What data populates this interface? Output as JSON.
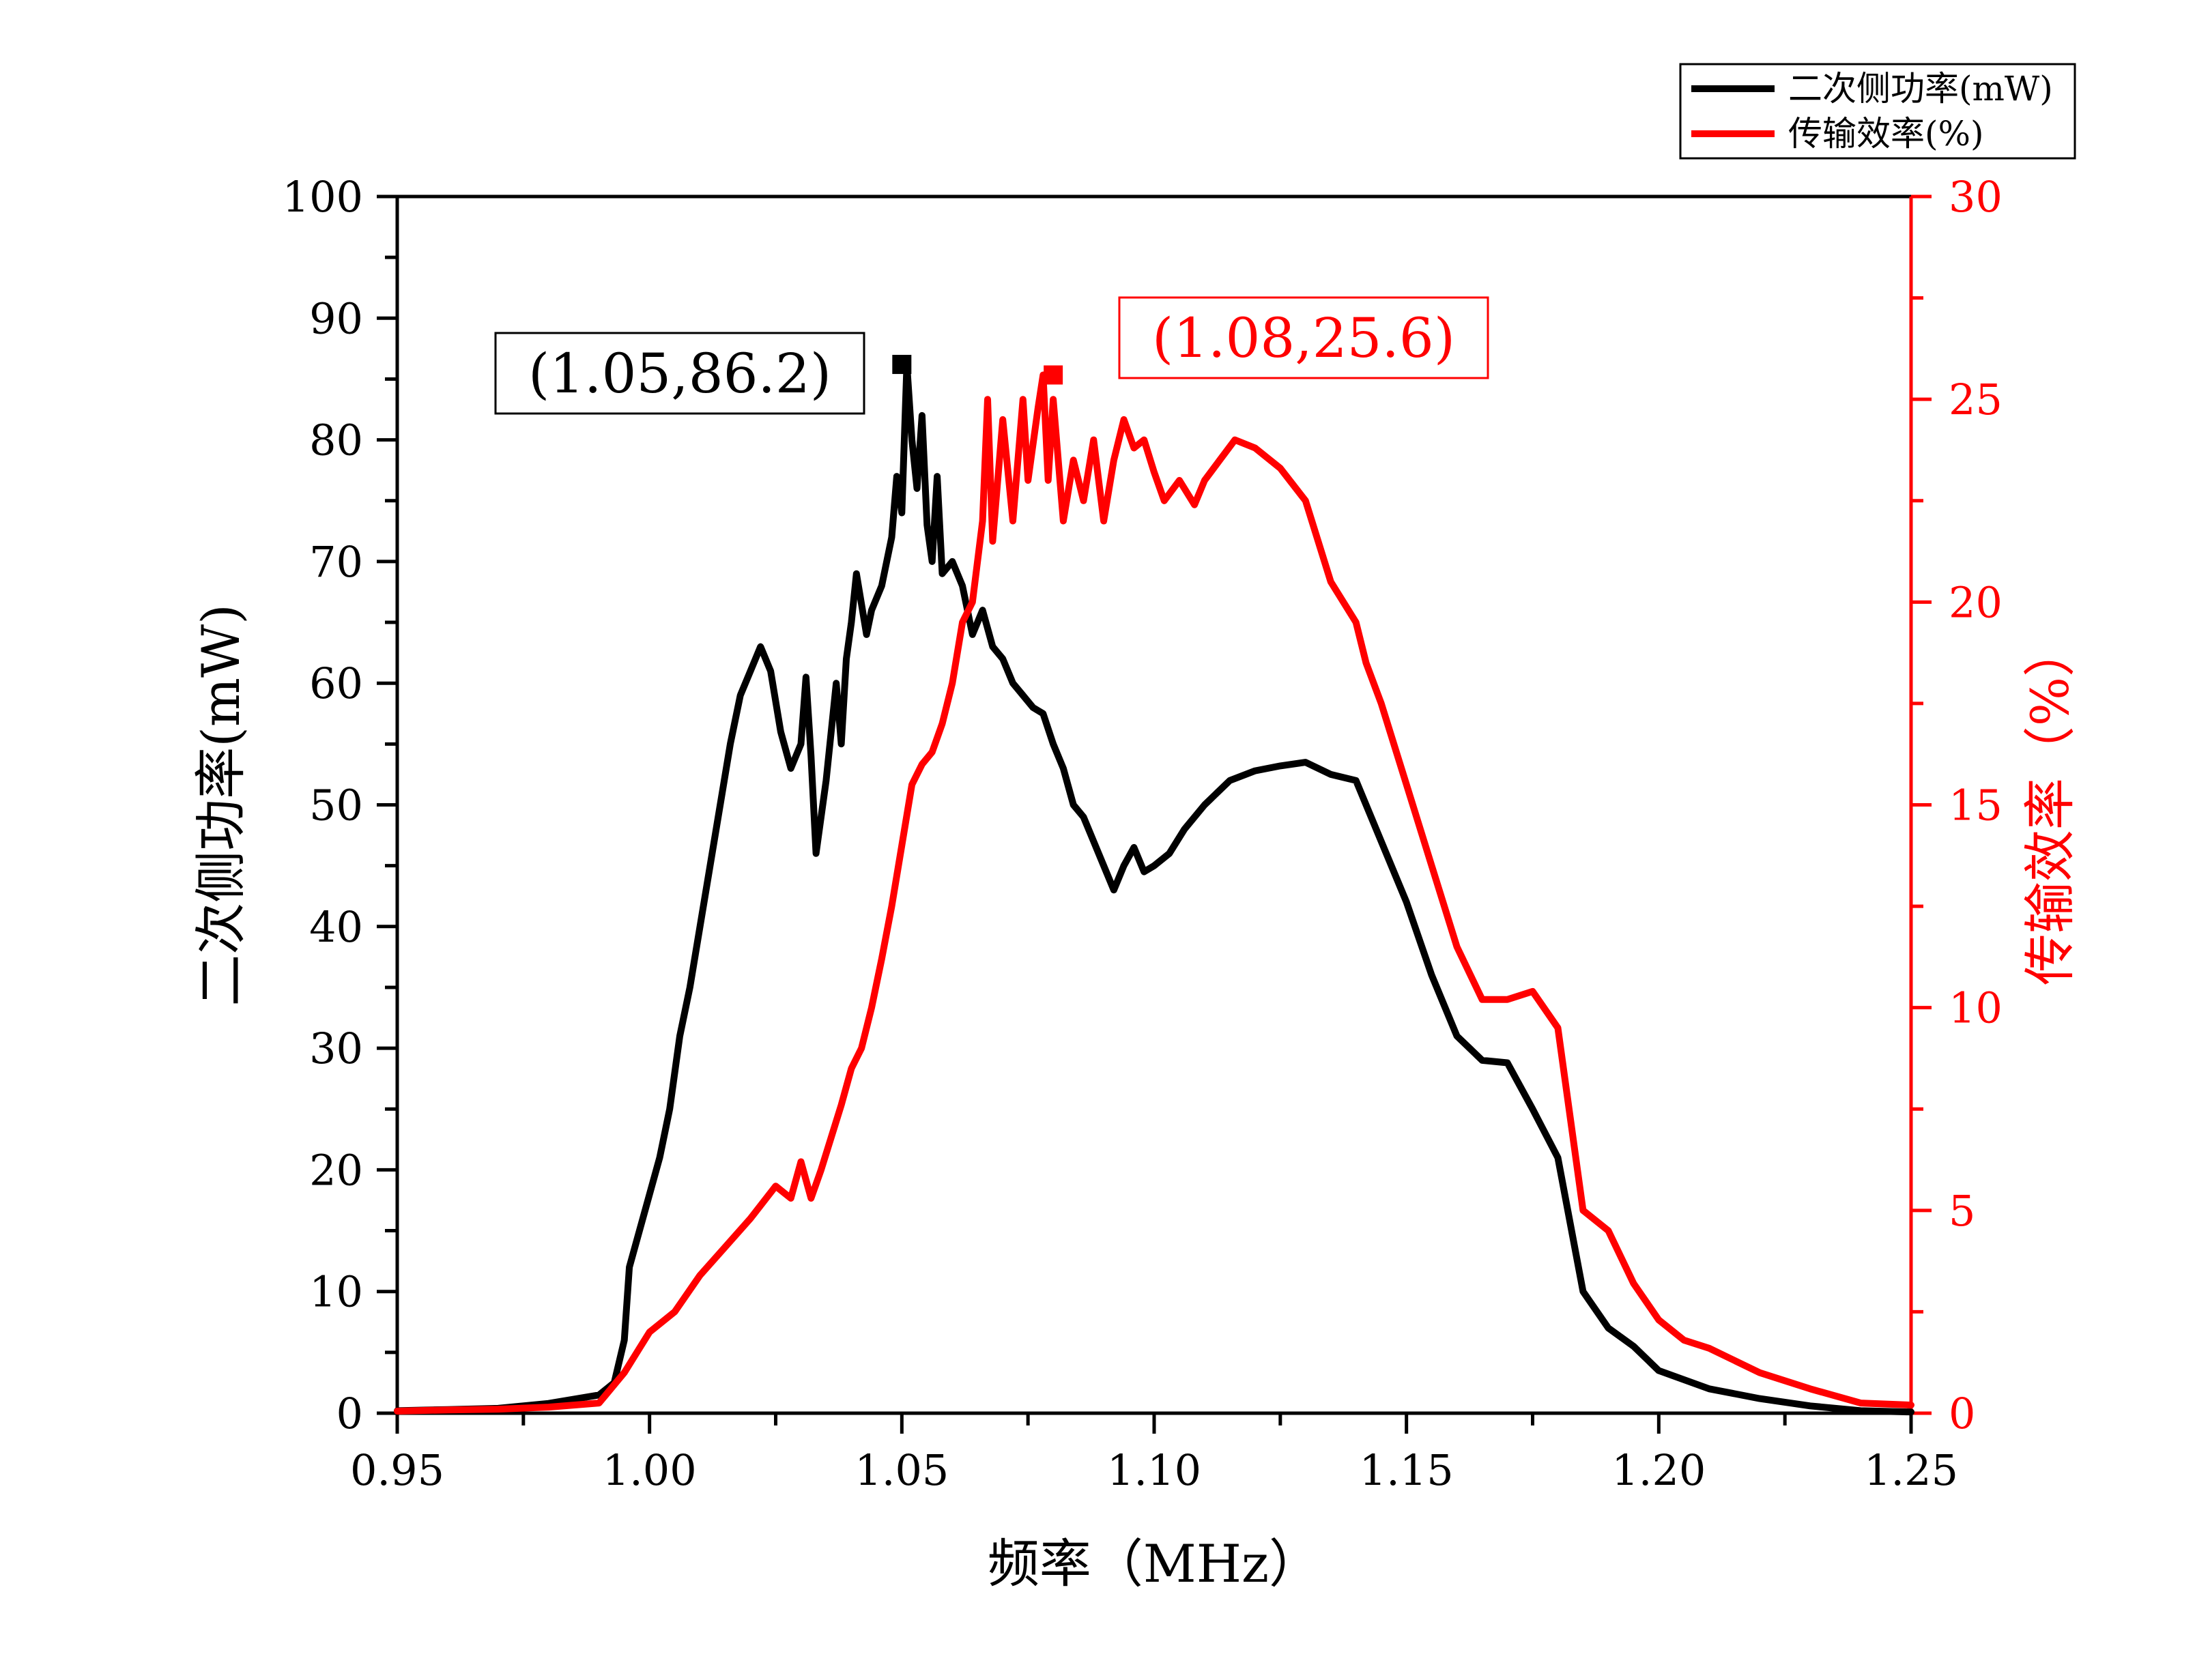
{
  "chart_data": {
    "type": "line",
    "title": "",
    "xlabel": "频率（MHz）",
    "ylabel_left": "二次侧功率(mW)",
    "ylabel_right": "传输效率（%）",
    "xlim": [
      0.95,
      1.25
    ],
    "ylim_left": [
      0,
      100
    ],
    "ylim_right": [
      0,
      30
    ],
    "x_ticks": [
      "0.95",
      "1.00",
      "1.05",
      "1.10",
      "1.15",
      "1.20",
      "1.25"
    ],
    "y_left_ticks": [
      "0",
      "10",
      "20",
      "30",
      "40",
      "50",
      "60",
      "70",
      "80",
      "90",
      "100"
    ],
    "y_right_ticks": [
      "0",
      "5",
      "10",
      "15",
      "20",
      "25",
      "30"
    ],
    "grid": false,
    "legend_position": "top-right",
    "colors": {
      "power": "#000000",
      "efficiency": "#ff0000"
    },
    "series": [
      {
        "name": "二次侧功率(mW)",
        "axis": "left",
        "color": "#000000",
        "points": [
          [
            0.95,
            0.2
          ],
          [
            0.96,
            0.3
          ],
          [
            0.97,
            0.4
          ],
          [
            0.98,
            0.8
          ],
          [
            0.99,
            1.5
          ],
          [
            0.993,
            2.5
          ],
          [
            0.995,
            6.0
          ],
          [
            0.996,
            12.0
          ],
          [
            0.998,
            15.0
          ],
          [
            1.0,
            18.0
          ],
          [
            1.002,
            21.0
          ],
          [
            1.004,
            25.0
          ],
          [
            1.006,
            31.0
          ],
          [
            1.008,
            35.0
          ],
          [
            1.01,
            40.0
          ],
          [
            1.012,
            45.0
          ],
          [
            1.014,
            50.0
          ],
          [
            1.016,
            55.0
          ],
          [
            1.018,
            59.0
          ],
          [
            1.02,
            61.0
          ],
          [
            1.022,
            63.0
          ],
          [
            1.024,
            61.0
          ],
          [
            1.026,
            56.0
          ],
          [
            1.028,
            53.0
          ],
          [
            1.03,
            55.0
          ],
          [
            1.031,
            60.5
          ],
          [
            1.032,
            54.0
          ],
          [
            1.033,
            46.0
          ],
          [
            1.035,
            52.0
          ],
          [
            1.037,
            60.0
          ],
          [
            1.038,
            55.0
          ],
          [
            1.039,
            62.0
          ],
          [
            1.04,
            65.0
          ],
          [
            1.041,
            69.0
          ],
          [
            1.043,
            64.0
          ],
          [
            1.044,
            66.0
          ],
          [
            1.046,
            68.0
          ],
          [
            1.048,
            72.0
          ],
          [
            1.049,
            77.0
          ],
          [
            1.05,
            74.0
          ],
          [
            1.051,
            86.2
          ],
          [
            1.052,
            80.0
          ],
          [
            1.053,
            76.0
          ],
          [
            1.054,
            82.0
          ],
          [
            1.055,
            73.0
          ],
          [
            1.056,
            70.0
          ],
          [
            1.057,
            77.0
          ],
          [
            1.058,
            69.0
          ],
          [
            1.06,
            70.0
          ],
          [
            1.062,
            68.0
          ],
          [
            1.064,
            64.0
          ],
          [
            1.066,
            66.0
          ],
          [
            1.068,
            63.0
          ],
          [
            1.07,
            62.0
          ],
          [
            1.072,
            60.0
          ],
          [
            1.074,
            59.0
          ],
          [
            1.076,
            58.0
          ],
          [
            1.078,
            57.5
          ],
          [
            1.08,
            55.0
          ],
          [
            1.082,
            53.0
          ],
          [
            1.084,
            50.0
          ],
          [
            1.086,
            49.0
          ],
          [
            1.088,
            47.0
          ],
          [
            1.09,
            45.0
          ],
          [
            1.092,
            43.0
          ],
          [
            1.094,
            45.0
          ],
          [
            1.096,
            46.5
          ],
          [
            1.098,
            44.5
          ],
          [
            1.1,
            45.0
          ],
          [
            1.103,
            46.0
          ],
          [
            1.106,
            48.0
          ],
          [
            1.11,
            50.0
          ],
          [
            1.115,
            52.0
          ],
          [
            1.12,
            52.8
          ],
          [
            1.125,
            53.2
          ],
          [
            1.13,
            53.5
          ],
          [
            1.135,
            52.5
          ],
          [
            1.14,
            52.0
          ],
          [
            1.145,
            47.0
          ],
          [
            1.15,
            42.0
          ],
          [
            1.155,
            36.0
          ],
          [
            1.16,
            31.0
          ],
          [
            1.165,
            29.0
          ],
          [
            1.17,
            28.8
          ],
          [
            1.175,
            25.0
          ],
          [
            1.18,
            21.0
          ],
          [
            1.185,
            10.0
          ],
          [
            1.19,
            7.0
          ],
          [
            1.195,
            5.5
          ],
          [
            1.2,
            3.5
          ],
          [
            1.21,
            2.0
          ],
          [
            1.22,
            1.2
          ],
          [
            1.23,
            0.6
          ],
          [
            1.24,
            0.2
          ],
          [
            1.25,
            0.1
          ]
        ]
      },
      {
        "name": "传输效率(%)",
        "axis": "right",
        "color": "#ff0000",
        "points": [
          [
            0.95,
            0.05
          ],
          [
            0.96,
            0.08
          ],
          [
            0.97,
            0.1
          ],
          [
            0.98,
            0.15
          ],
          [
            0.99,
            0.25
          ],
          [
            0.995,
            1.0
          ],
          [
            0.998,
            1.6
          ],
          [
            1.0,
            2.0
          ],
          [
            1.005,
            2.5
          ],
          [
            1.01,
            3.4
          ],
          [
            1.015,
            4.1
          ],
          [
            1.02,
            4.8
          ],
          [
            1.025,
            5.6
          ],
          [
            1.028,
            5.3
          ],
          [
            1.03,
            6.2
          ],
          [
            1.032,
            5.3
          ],
          [
            1.034,
            6.0
          ],
          [
            1.036,
            6.8
          ],
          [
            1.038,
            7.6
          ],
          [
            1.04,
            8.5
          ],
          [
            1.042,
            9.0
          ],
          [
            1.044,
            10.0
          ],
          [
            1.046,
            11.2
          ],
          [
            1.048,
            12.5
          ],
          [
            1.05,
            14.0
          ],
          [
            1.052,
            15.5
          ],
          [
            1.054,
            16.0
          ],
          [
            1.056,
            16.3
          ],
          [
            1.058,
            17.0
          ],
          [
            1.06,
            18.0
          ],
          [
            1.062,
            19.5
          ],
          [
            1.064,
            20.0
          ],
          [
            1.066,
            22.0
          ],
          [
            1.067,
            25.0
          ],
          [
            1.068,
            21.5
          ],
          [
            1.07,
            24.5
          ],
          [
            1.072,
            22.0
          ],
          [
            1.074,
            25.0
          ],
          [
            1.075,
            23.0
          ],
          [
            1.077,
            24.8
          ],
          [
            1.078,
            25.6
          ],
          [
            1.079,
            23.0
          ],
          [
            1.08,
            25.0
          ],
          [
            1.082,
            22.0
          ],
          [
            1.084,
            23.5
          ],
          [
            1.086,
            22.5
          ],
          [
            1.088,
            24.0
          ],
          [
            1.09,
            22.0
          ],
          [
            1.092,
            23.5
          ],
          [
            1.094,
            24.5
          ],
          [
            1.096,
            23.8
          ],
          [
            1.098,
            24.0
          ],
          [
            1.1,
            23.2
          ],
          [
            1.102,
            22.5
          ],
          [
            1.105,
            23.0
          ],
          [
            1.108,
            22.4
          ],
          [
            1.11,
            23.0
          ],
          [
            1.113,
            23.5
          ],
          [
            1.116,
            24.0
          ],
          [
            1.12,
            23.8
          ],
          [
            1.125,
            23.3
          ],
          [
            1.13,
            22.5
          ],
          [
            1.135,
            20.5
          ],
          [
            1.14,
            19.5
          ],
          [
            1.142,
            18.5
          ],
          [
            1.145,
            17.5
          ],
          [
            1.15,
            15.5
          ],
          [
            1.155,
            13.5
          ],
          [
            1.16,
            11.5
          ],
          [
            1.165,
            10.2
          ],
          [
            1.17,
            10.2
          ],
          [
            1.175,
            10.4
          ],
          [
            1.18,
            9.5
          ],
          [
            1.185,
            5.0
          ],
          [
            1.19,
            4.5
          ],
          [
            1.195,
            3.2
          ],
          [
            1.2,
            2.3
          ],
          [
            1.205,
            1.8
          ],
          [
            1.21,
            1.6
          ],
          [
            1.22,
            1.0
          ],
          [
            1.23,
            0.6
          ],
          [
            1.24,
            0.25
          ],
          [
            1.25,
            0.2
          ]
        ]
      }
    ],
    "annotations": [
      {
        "label": "(1.05,86.2)",
        "x": 1.05,
        "y": 86.2,
        "axis": "left",
        "color": "#000000"
      },
      {
        "label": "(1.08,25.6)",
        "x": 1.08,
        "y": 25.6,
        "axis": "right",
        "color": "#ff0000"
      }
    ]
  }
}
